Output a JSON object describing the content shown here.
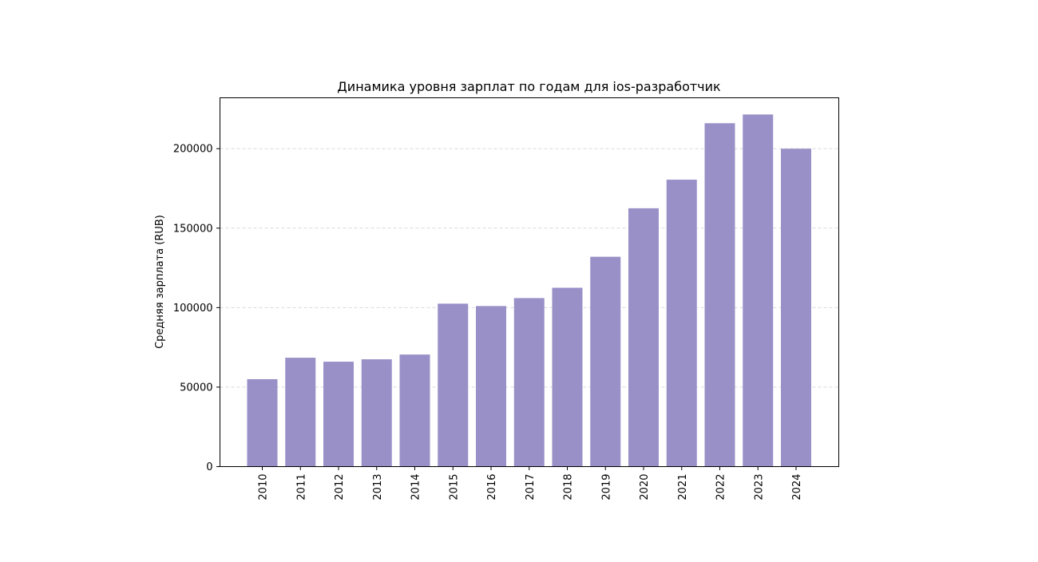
{
  "chart_data": {
    "type": "bar",
    "title": "Динамика уровня зарплат по годам для ios-разработчик",
    "xlabel": "",
    "ylabel": "Средняя зарплата (RUB)",
    "categories": [
      "2010",
      "2011",
      "2012",
      "2013",
      "2014",
      "2015",
      "2016",
      "2017",
      "2018",
      "2019",
      "2020",
      "2021",
      "2022",
      "2023",
      "2024"
    ],
    "values": [
      55000,
      68500,
      66000,
      67500,
      70500,
      102500,
      101000,
      106000,
      112500,
      132000,
      162500,
      180500,
      216000,
      221500,
      200000
    ],
    "ylim": [
      0,
      232000
    ],
    "yticks": [
      0,
      50000,
      100000,
      150000,
      200000
    ],
    "ytick_labels": [
      "0",
      "50000",
      "100000",
      "150000",
      "200000"
    ],
    "grid": "horizontal dashed",
    "bar_color": "#9990c8",
    "grid_color": "#d9d9d9",
    "axis_color": "#000000"
  }
}
